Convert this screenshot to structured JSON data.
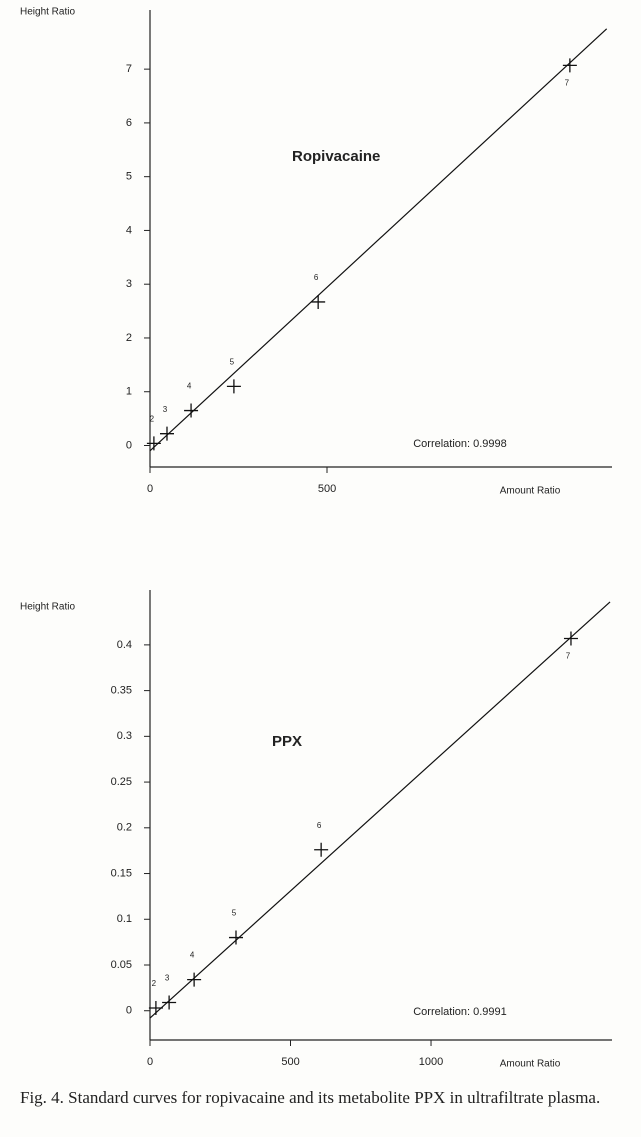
{
  "chart_data": [
    {
      "type": "scatter",
      "title": "Ropivacaine",
      "annotation": "Correlation: 0.9998",
      "x_label": "Amount Ratio",
      "y_label": "Height Ratio",
      "x": [
        11,
        48,
        116,
        237,
        475,
        1186
      ],
      "values": [
        0.04,
        0.22,
        0.65,
        1.1,
        2.67,
        7.07
      ],
      "point_labels": [
        "2",
        "3",
        "4",
        "5",
        "6",
        "7"
      ],
      "fit": {
        "x": [
          0,
          1290
        ],
        "values": [
          -0.1,
          7.75
        ]
      },
      "color": "#111111",
      "xlim": [
        0,
        1305
      ],
      "ylim": [
        -0.4,
        8.1
      ],
      "xticks": [
        0,
        500
      ],
      "yticks": [
        0,
        1,
        2,
        3,
        4,
        5,
        6,
        7
      ]
    },
    {
      "type": "scatter",
      "title": "PPX",
      "annotation": "Correlation: 0.9991",
      "x_label": "Amount Ratio",
      "y_label": "Height Ratio",
      "x": [
        21,
        68,
        157,
        306,
        609,
        1498
      ],
      "values": [
        0.003,
        0.009,
        0.034,
        0.08,
        0.176,
        0.407
      ],
      "point_labels": [
        "2",
        "3",
        "4",
        "5",
        "6",
        "7"
      ],
      "fit": {
        "x": [
          0,
          1637
        ],
        "values": [
          -0.008,
          0.447
        ]
      },
      "color": "#111111",
      "xlim": [
        0,
        1644
      ],
      "ylim": [
        -0.032,
        0.46
      ],
      "xticks": [
        0,
        500,
        1000
      ],
      "yticks": [
        0,
        0.05,
        0.1,
        0.15,
        0.2,
        0.25,
        0.3,
        0.35,
        0.4
      ]
    }
  ],
  "caption": "Fig. 4.  Standard curves for ropivacaine and its metabolite PPX in ultrafiltrate plasma."
}
